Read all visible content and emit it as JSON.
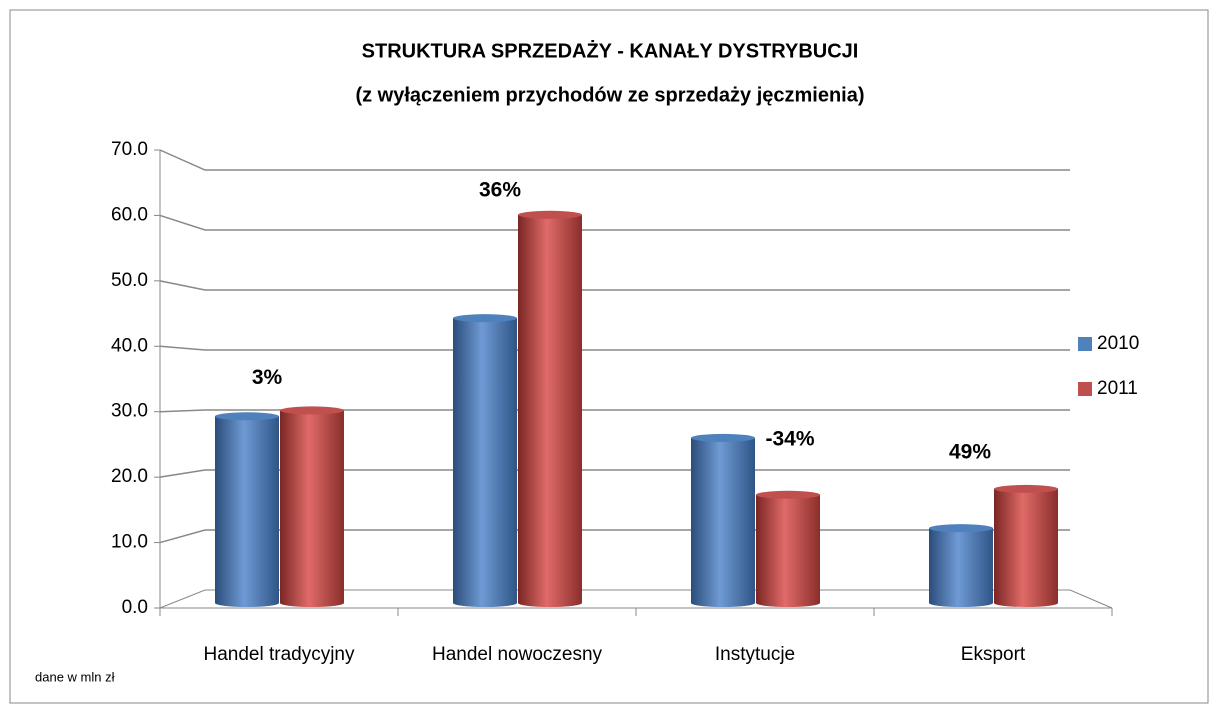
{
  "chart_data": {
    "type": "bar3d",
    "title": "STRUKTURA SPRZEDAŻY - KANAŁY DYSTRYBUCJI",
    "subtitle": "(z wyłączeniem przychodów ze sprzedaży jęczmienia)",
    "categories": [
      "Handel tradycyjny",
      "Handel nowoczesny",
      "Instytucje",
      "Eksport"
    ],
    "series": [
      {
        "name": "2010",
        "color": "#4f81bd",
        "values": [
          29.3,
          44.3,
          26.0,
          12.2
        ]
      },
      {
        "name": "2011",
        "color": "#c0504d",
        "values": [
          30.2,
          60.1,
          17.3,
          18.2
        ]
      }
    ],
    "annotations": [
      "3%",
      "36%",
      "-34%",
      "49%"
    ],
    "note": "dane w  mln zł",
    "ylim": [
      0,
      70
    ],
    "yticks": [
      {
        "value": 0,
        "label": "0.0"
      },
      {
        "value": 10,
        "label": "10.0"
      },
      {
        "value": 20,
        "label": "20.0"
      },
      {
        "value": 30,
        "label": "30.0"
      },
      {
        "value": 40,
        "label": "40.0"
      },
      {
        "value": 50,
        "label": "50.0"
      },
      {
        "value": 60,
        "label": "60.0"
      },
      {
        "value": 70,
        "label": "70.0"
      }
    ],
    "grid": true,
    "legend": "right"
  }
}
